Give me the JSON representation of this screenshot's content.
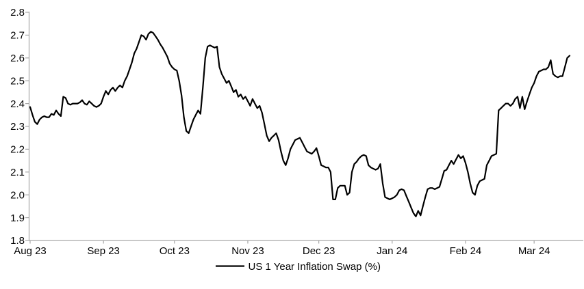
{
  "chart_data": {
    "type": "line",
    "title": "",
    "legend_label": "US 1 Year Inflation Swap (%)",
    "legend_position": "bottom-center",
    "grid": false,
    "background_color": "#ffffff",
    "line_color": "#000000",
    "axis_color": "#a6a6a6",
    "label_color": "#000000",
    "ylim": [
      1.8,
      2.8
    ],
    "y_ticks": [
      "1.8",
      "1.9",
      "2.0",
      "2.1",
      "2.2",
      "2.3",
      "2.4",
      "2.5",
      "2.6",
      "2.7",
      "2.8"
    ],
    "x_ticks": [
      {
        "label": "Aug 23",
        "day": 0
      },
      {
        "label": "Sep 23",
        "day": 31
      },
      {
        "label": "Oct 23",
        "day": 61
      },
      {
        "label": "Nov 23",
        "day": 92
      },
      {
        "label": "Dec 23",
        "day": 122
      },
      {
        "label": "Jan 24",
        "day": 153
      },
      {
        "label": "Feb 24",
        "day": 184
      },
      {
        "label": "Mar 24",
        "day": 213
      }
    ],
    "series": [
      {
        "name": "US 1 Year Inflation Swap (%)",
        "x_frequency": "daily",
        "values": [
          2.385,
          2.35,
          2.32,
          2.31,
          2.33,
          2.34,
          2.345,
          2.34,
          2.34,
          2.355,
          2.35,
          2.37,
          2.355,
          2.345,
          2.43,
          2.425,
          2.4,
          2.395,
          2.4,
          2.4,
          2.4,
          2.405,
          2.415,
          2.4,
          2.395,
          2.41,
          2.4,
          2.39,
          2.385,
          2.39,
          2.4,
          2.43,
          2.455,
          2.44,
          2.46,
          2.47,
          2.455,
          2.47,
          2.48,
          2.47,
          2.5,
          2.52,
          2.55,
          2.58,
          2.62,
          2.64,
          2.67,
          2.7,
          2.695,
          2.68,
          2.705,
          2.715,
          2.71,
          2.695,
          2.68,
          2.66,
          2.645,
          2.625,
          2.605,
          2.575,
          2.56,
          2.55,
          2.545,
          2.5,
          2.435,
          2.34,
          2.28,
          2.27,
          2.3,
          2.33,
          2.35,
          2.37,
          2.355,
          2.47,
          2.6,
          2.65,
          2.655,
          2.65,
          2.645,
          2.65,
          2.56,
          2.53,
          2.51,
          2.49,
          2.5,
          2.475,
          2.45,
          2.46,
          2.43,
          2.44,
          2.42,
          2.43,
          2.41,
          2.39,
          2.42,
          2.4,
          2.38,
          2.39,
          2.36,
          2.31,
          2.26,
          2.235,
          2.25,
          2.26,
          2.27,
          2.24,
          2.19,
          2.15,
          2.13,
          2.16,
          2.2,
          2.22,
          2.24,
          2.245,
          2.25,
          2.23,
          2.21,
          2.19,
          2.185,
          2.18,
          2.19,
          2.205,
          2.17,
          2.13,
          2.125,
          2.12,
          2.12,
          2.1,
          1.98,
          1.98,
          2.03,
          2.04,
          2.04,
          2.04,
          2.0,
          2.01,
          2.1,
          2.135,
          2.145,
          2.16,
          2.17,
          2.175,
          2.17,
          2.13,
          2.12,
          2.115,
          2.11,
          2.115,
          2.135,
          2.05,
          1.99,
          1.985,
          1.98,
          1.985,
          1.99,
          2.0,
          2.02,
          2.025,
          2.02,
          1.995,
          1.97,
          1.945,
          1.92,
          1.905,
          1.93,
          1.91,
          1.95,
          1.99,
          2.025,
          2.03,
          2.03,
          2.025,
          2.03,
          2.035,
          2.07,
          2.105,
          2.11,
          2.13,
          2.15,
          2.135,
          2.155,
          2.175,
          2.16,
          2.17,
          2.14,
          2.1,
          2.05,
          2.01,
          2.0,
          2.04,
          2.06,
          2.065,
          2.07,
          2.13,
          2.15,
          2.17,
          2.175,
          2.18,
          2.37,
          2.38,
          2.39,
          2.4,
          2.4,
          2.39,
          2.4,
          2.42,
          2.43,
          2.38,
          2.43,
          2.375,
          2.41,
          2.44,
          2.47,
          2.49,
          2.52,
          2.54,
          2.545,
          2.55,
          2.55,
          2.56,
          2.59,
          2.53,
          2.52,
          2.515,
          2.52,
          2.52,
          2.56,
          2.6,
          2.61
        ]
      }
    ]
  }
}
